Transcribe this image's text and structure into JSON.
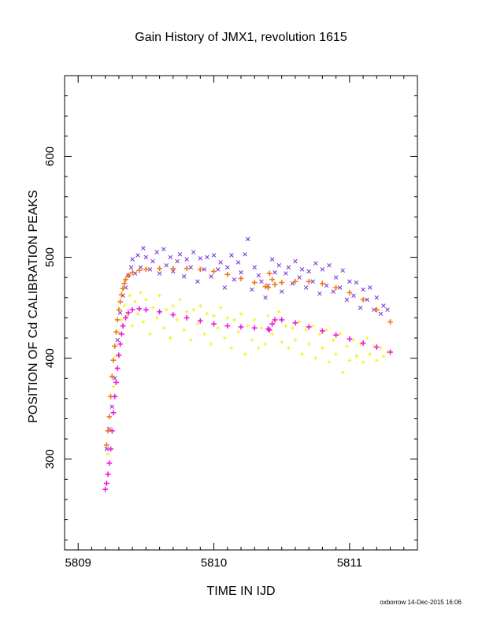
{
  "chart_data": {
    "type": "scatter",
    "title": "Gain History of JMX1, revolution 1615",
    "xlabel": "TIME IN IJD",
    "ylabel": "POSITION OF Cd CALIBRATION PEAKS",
    "xlim": [
      5808.9,
      5811.5
    ],
    "ylim": [
      210,
      680
    ],
    "xticks": [
      5809,
      5810,
      5811
    ],
    "yticks": [
      300,
      400,
      500,
      600
    ],
    "grid": false,
    "legend": "none",
    "series": [
      {
        "marker": "x",
        "color": "#7a2bd8",
        "points": [
          [
            5809.21,
            310
          ],
          [
            5809.23,
            330
          ],
          [
            5809.25,
            352
          ],
          [
            5809.27,
            380
          ],
          [
            5809.29,
            418
          ],
          [
            5809.31,
            445
          ],
          [
            5809.33,
            462
          ],
          [
            5809.35,
            470
          ],
          [
            5809.37,
            482
          ],
          [
            5809.39,
            490
          ],
          [
            5809.4,
            498
          ],
          [
            5809.42,
            484
          ],
          [
            5809.44,
            502
          ],
          [
            5809.46,
            490
          ],
          [
            5809.48,
            509
          ],
          [
            5809.5,
            500
          ],
          [
            5809.53,
            488
          ],
          [
            5809.55,
            496
          ],
          [
            5809.58,
            505
          ],
          [
            5809.6,
            484
          ],
          [
            5809.63,
            508
          ],
          [
            5809.65,
            492
          ],
          [
            5809.68,
            500
          ],
          [
            5809.7,
            486
          ],
          [
            5809.73,
            496
          ],
          [
            5809.75,
            503
          ],
          [
            5809.78,
            481
          ],
          [
            5809.8,
            498
          ],
          [
            5809.83,
            490
          ],
          [
            5809.85,
            505
          ],
          [
            5809.88,
            476
          ],
          [
            5809.9,
            499
          ],
          [
            5809.93,
            488
          ],
          [
            5809.95,
            500
          ],
          [
            5809.98,
            481
          ],
          [
            5810.0,
            502
          ],
          [
            5810.03,
            488
          ],
          [
            5810.05,
            495
          ],
          [
            5810.08,
            470
          ],
          [
            5810.1,
            490
          ],
          [
            5810.13,
            502
          ],
          [
            5810.15,
            478
          ],
          [
            5810.18,
            495
          ],
          [
            5810.2,
            485
          ],
          [
            5810.23,
            503
          ],
          [
            5810.25,
            518
          ],
          [
            5810.28,
            468
          ],
          [
            5810.3,
            490
          ],
          [
            5810.33,
            482
          ],
          [
            5810.35,
            476
          ],
          [
            5810.38,
            460
          ],
          [
            5810.4,
            472
          ],
          [
            5810.43,
            498
          ],
          [
            5810.45,
            485
          ],
          [
            5810.48,
            492
          ],
          [
            5810.5,
            466
          ],
          [
            5810.53,
            484
          ],
          [
            5810.55,
            490
          ],
          [
            5810.58,
            474
          ],
          [
            5810.6,
            496
          ],
          [
            5810.63,
            480
          ],
          [
            5810.65,
            488
          ],
          [
            5810.68,
            470
          ],
          [
            5810.7,
            486
          ],
          [
            5810.73,
            476
          ],
          [
            5810.75,
            494
          ],
          [
            5810.78,
            464
          ],
          [
            5810.8,
            488
          ],
          [
            5810.83,
            472
          ],
          [
            5810.85,
            492
          ],
          [
            5810.88,
            466
          ],
          [
            5810.9,
            480
          ],
          [
            5810.93,
            470
          ],
          [
            5810.95,
            487
          ],
          [
            5810.98,
            458
          ],
          [
            5811.0,
            476
          ],
          [
            5811.03,
            462
          ],
          [
            5811.05,
            475
          ],
          [
            5811.08,
            450
          ],
          [
            5811.1,
            468
          ],
          [
            5811.13,
            458
          ],
          [
            5811.15,
            470
          ],
          [
            5811.18,
            448
          ],
          [
            5811.2,
            460
          ],
          [
            5811.23,
            444
          ],
          [
            5811.25,
            452
          ],
          [
            5811.28,
            448
          ]
        ]
      },
      {
        "marker": "+",
        "color": "#f0f000",
        "points": [
          [
            5809.22,
            305
          ],
          [
            5809.24,
            330
          ],
          [
            5809.26,
            372
          ],
          [
            5809.28,
            402
          ],
          [
            5809.3,
            425
          ],
          [
            5809.32,
            438
          ],
          [
            5809.34,
            452
          ],
          [
            5809.36,
            442
          ],
          [
            5809.38,
            462
          ],
          [
            5809.4,
            432
          ],
          [
            5809.42,
            456
          ],
          [
            5809.44,
            444
          ],
          [
            5809.46,
            465
          ],
          [
            5809.48,
            436
          ],
          [
            5809.5,
            458
          ],
          [
            5809.53,
            424
          ],
          [
            5809.55,
            450
          ],
          [
            5809.58,
            440
          ],
          [
            5809.6,
            462
          ],
          [
            5809.63,
            430
          ],
          [
            5809.65,
            448
          ],
          [
            5809.68,
            420
          ],
          [
            5809.7,
            452
          ],
          [
            5809.73,
            438
          ],
          [
            5809.75,
            458
          ],
          [
            5809.78,
            428
          ],
          [
            5809.8,
            446
          ],
          [
            5809.83,
            418
          ],
          [
            5809.85,
            448
          ],
          [
            5809.88,
            434
          ],
          [
            5809.9,
            452
          ],
          [
            5809.93,
            424
          ],
          [
            5809.95,
            444
          ],
          [
            5809.98,
            414
          ],
          [
            5810.0,
            442
          ],
          [
            5810.03,
            430
          ],
          [
            5810.05,
            450
          ],
          [
            5810.08,
            420
          ],
          [
            5810.1,
            440
          ],
          [
            5810.13,
            410
          ],
          [
            5810.15,
            438
          ],
          [
            5810.18,
            426
          ],
          [
            5810.2,
            444
          ],
          [
            5810.23,
            404
          ],
          [
            5810.25,
            432
          ],
          [
            5810.28,
            418
          ],
          [
            5810.3,
            438
          ],
          [
            5810.33,
            410
          ],
          [
            5810.35,
            430
          ],
          [
            5810.38,
            414
          ],
          [
            5810.4,
            442
          ],
          [
            5810.43,
            424
          ],
          [
            5810.45,
            436
          ],
          [
            5810.48,
            446
          ],
          [
            5810.5,
            416
          ],
          [
            5810.53,
            432
          ],
          [
            5810.55,
            410
          ],
          [
            5810.58,
            430
          ],
          [
            5810.6,
            418
          ],
          [
            5810.63,
            436
          ],
          [
            5810.65,
            404
          ],
          [
            5810.68,
            428
          ],
          [
            5810.7,
            414
          ],
          [
            5810.73,
            432
          ],
          [
            5810.75,
            400
          ],
          [
            5810.78,
            424
          ],
          [
            5810.8,
            410
          ],
          [
            5810.83,
            428
          ],
          [
            5810.85,
            396
          ],
          [
            5810.88,
            418
          ],
          [
            5810.9,
            404
          ],
          [
            5810.93,
            424
          ],
          [
            5810.95,
            386
          ],
          [
            5810.98,
            412
          ],
          [
            5811.0,
            398
          ],
          [
            5811.03,
            418
          ],
          [
            5811.05,
            402
          ],
          [
            5811.08,
            414
          ],
          [
            5811.1,
            396
          ],
          [
            5811.13,
            420
          ],
          [
            5811.15,
            404
          ],
          [
            5811.18,
            412
          ],
          [
            5811.2,
            398
          ],
          [
            5811.23,
            410
          ],
          [
            5811.25,
            402
          ],
          [
            5811.28,
            406
          ]
        ]
      },
      {
        "marker": "+",
        "color": "#f07818",
        "points": [
          [
            5809.21,
            314
          ],
          [
            5809.22,
            328
          ],
          [
            5809.23,
            342
          ],
          [
            5809.24,
            362
          ],
          [
            5809.25,
            382
          ],
          [
            5809.26,
            398
          ],
          [
            5809.27,
            412
          ],
          [
            5809.28,
            426
          ],
          [
            5809.29,
            438
          ],
          [
            5809.3,
            448
          ],
          [
            5809.31,
            456
          ],
          [
            5809.32,
            463
          ],
          [
            5809.33,
            469
          ],
          [
            5809.34,
            474
          ],
          [
            5809.35,
            478
          ],
          [
            5809.37,
            482
          ],
          [
            5809.4,
            485
          ],
          [
            5809.45,
            487
          ],
          [
            5809.5,
            488
          ],
          [
            5809.6,
            489
          ],
          [
            5809.7,
            489
          ],
          [
            5809.8,
            489
          ],
          [
            5809.9,
            488
          ],
          [
            5810.0,
            486
          ],
          [
            5810.1,
            483
          ],
          [
            5810.2,
            479
          ],
          [
            5810.3,
            475
          ],
          [
            5810.38,
            471
          ],
          [
            5810.4,
            470
          ],
          [
            5810.41,
            484
          ],
          [
            5810.43,
            478
          ],
          [
            5810.45,
            473
          ],
          [
            5810.5,
            475
          ],
          [
            5810.6,
            476
          ],
          [
            5810.7,
            476
          ],
          [
            5810.8,
            474
          ],
          [
            5810.9,
            470
          ],
          [
            5811.0,
            465
          ],
          [
            5811.1,
            458
          ],
          [
            5811.2,
            448
          ],
          [
            5811.3,
            436
          ]
        ]
      },
      {
        "marker": "+",
        "color": "#f018e0",
        "points": [
          [
            5809.2,
            270
          ],
          [
            5809.21,
            276
          ],
          [
            5809.22,
            285
          ],
          [
            5809.23,
            296
          ],
          [
            5809.24,
            310
          ],
          [
            5809.25,
            328
          ],
          [
            5809.26,
            346
          ],
          [
            5809.27,
            362
          ],
          [
            5809.28,
            376
          ],
          [
            5809.29,
            390
          ],
          [
            5809.3,
            403
          ],
          [
            5809.31,
            414
          ],
          [
            5809.32,
            424
          ],
          [
            5809.33,
            432
          ],
          [
            5809.35,
            440
          ],
          [
            5809.37,
            445
          ],
          [
            5809.4,
            448
          ],
          [
            5809.45,
            449
          ],
          [
            5809.5,
            448
          ],
          [
            5809.6,
            446
          ],
          [
            5809.7,
            443
          ],
          [
            5809.8,
            440
          ],
          [
            5809.9,
            437
          ],
          [
            5810.0,
            434
          ],
          [
            5810.1,
            432
          ],
          [
            5810.2,
            431
          ],
          [
            5810.3,
            430
          ],
          [
            5810.4,
            429
          ],
          [
            5810.41,
            428
          ],
          [
            5810.43,
            434
          ],
          [
            5810.45,
            438
          ],
          [
            5810.5,
            438
          ],
          [
            5810.6,
            435
          ],
          [
            5810.7,
            431
          ],
          [
            5810.8,
            427
          ],
          [
            5810.9,
            423
          ],
          [
            5811.0,
            419
          ],
          [
            5811.1,
            415
          ],
          [
            5811.2,
            411
          ],
          [
            5811.3,
            406
          ]
        ]
      }
    ]
  },
  "footer": {
    "credit": "oxborrow 14-Dec-2015 16:06"
  }
}
